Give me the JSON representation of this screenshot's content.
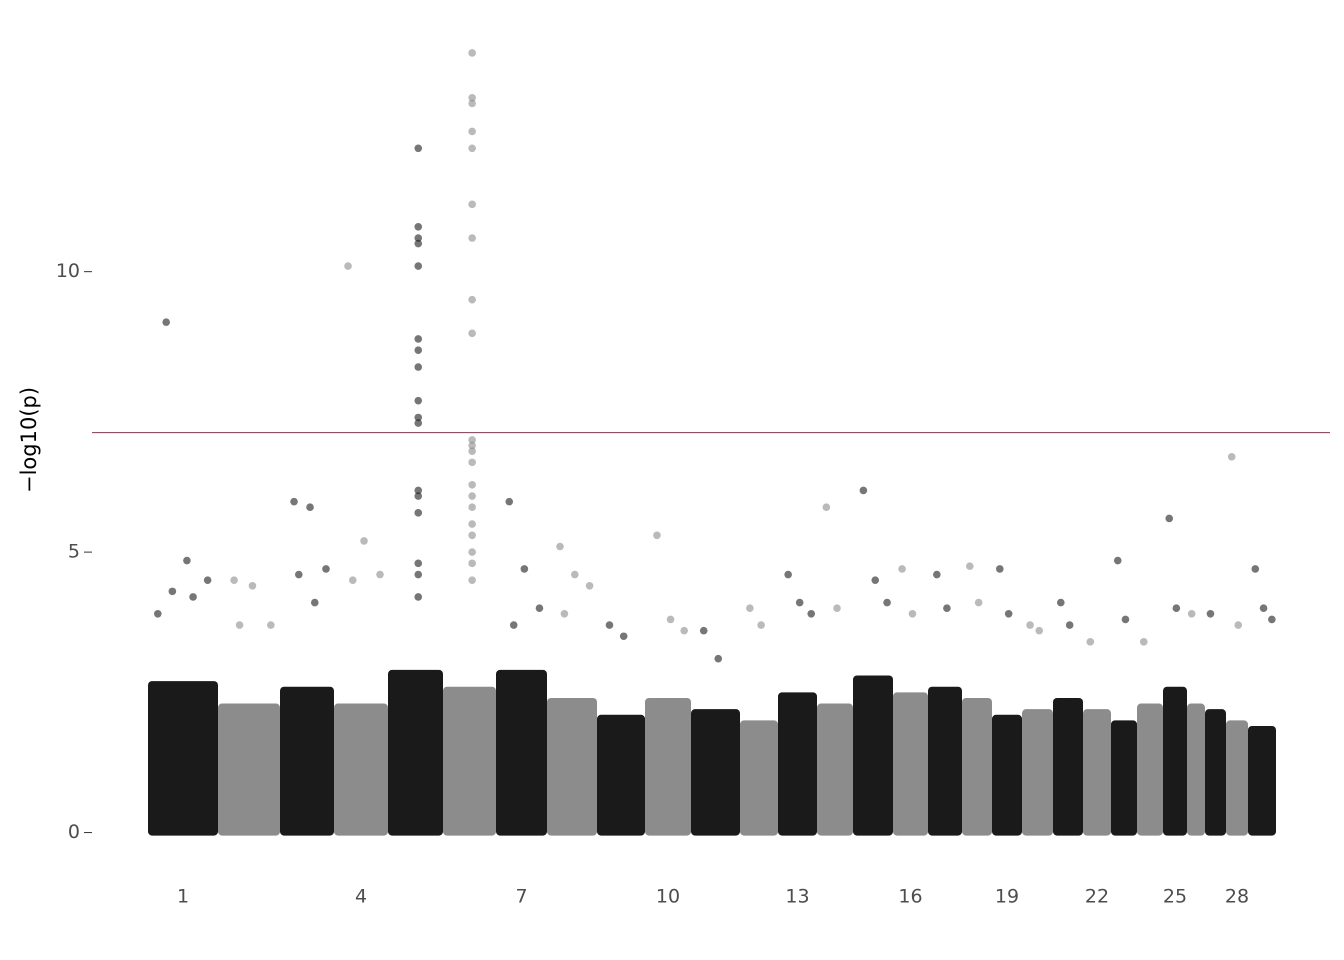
{
  "chart_data": {
    "type": "manhattan",
    "ylabel": "−log10(p)",
    "categories": [
      "1",
      null,
      null,
      "4",
      null,
      null,
      "7",
      null,
      null,
      "10",
      null,
      null,
      "13",
      null,
      null,
      "16",
      null,
      null,
      "19",
      null,
      null,
      "22",
      null,
      null,
      "25",
      null,
      null,
      "28",
      null
    ],
    "colors": [
      "#1a1a1a",
      "#8c8c8c"
    ],
    "values": [
      2.7,
      2.3,
      2.6,
      2.3,
      2.9,
      2.6,
      2.9,
      2.4,
      2.1,
      2.4,
      2.2,
      2.0,
      2.5,
      2.3,
      2.8,
      2.5,
      2.6,
      2.4,
      2.1,
      2.2,
      2.4,
      2.2,
      2.0,
      2.3,
      2.6,
      2.3,
      2.2,
      2.0,
      1.9
    ],
    "outliers": [
      [
        9.1,
        4.85,
        4.5,
        4.3,
        4.2,
        3.9
      ],
      [
        4.5,
        4.4,
        3.7,
        3.7
      ],
      [
        5.9,
        5.8,
        4.7,
        4.6,
        4.1
      ],
      [
        10.1,
        5.2,
        4.6,
        4.5
      ],
      [
        12.2,
        10.8,
        10.6,
        10.5,
        10.1,
        8.8,
        8.6,
        8.3,
        7.7,
        7.4,
        7.3,
        6.1,
        6.0,
        5.7,
        4.8,
        4.6,
        4.2
      ],
      [
        13.9,
        13.1,
        13.0,
        12.5,
        12.2,
        11.2,
        10.6,
        9.5,
        8.9,
        7.0,
        6.9,
        6.8,
        6.6,
        6.2,
        6.0,
        5.8,
        5.5,
        5.3,
        5.0,
        4.8,
        4.5
      ],
      [
        5.9,
        4.7,
        4.0,
        3.7
      ],
      [
        5.1,
        4.6,
        4.4,
        3.9
      ],
      [
        3.7,
        3.5
      ],
      [
        5.3,
        3.8,
        3.6
      ],
      [
        3.6,
        3.1
      ],
      [
        4.0,
        3.7
      ],
      [
        4.6,
        4.1,
        3.9
      ],
      [
        5.8,
        4.0
      ],
      [
        6.1,
        4.5,
        4.1
      ],
      [
        4.7,
        3.9
      ],
      [
        4.6,
        4.0
      ],
      [
        4.75,
        4.1
      ],
      [
        4.7,
        3.9
      ],
      [
        3.7,
        3.6
      ],
      [
        4.1,
        3.7
      ],
      [
        3.4
      ],
      [
        4.85,
        3.8
      ],
      [
        3.4
      ],
      [
        5.6,
        4.0
      ],
      [
        3.9
      ],
      [
        3.9
      ],
      [
        6.7,
        3.7
      ],
      [
        4.7,
        4.0,
        3.8
      ]
    ],
    "threshold": 7.13,
    "threshold_color": "#a8244e",
    "ylim": [
      -0.4,
      14.13
    ],
    "yticks": [
      0,
      5,
      10
    ]
  }
}
